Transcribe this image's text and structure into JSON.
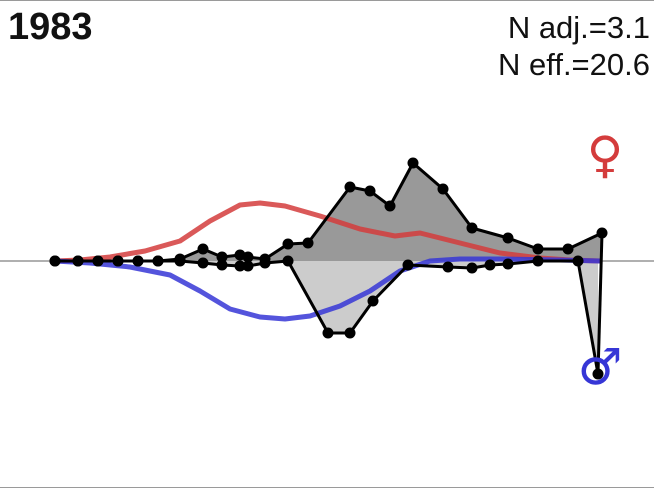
{
  "header": {
    "year": "1983",
    "n_adj_label": "N adj.=3.1",
    "n_eff_label": "N eff.=20.6"
  },
  "symbols": {
    "female": "♀",
    "male": "♂"
  },
  "colors": {
    "female_line": "#d43c3c",
    "male_line": "#3636d6",
    "upper_fill": "#999999",
    "lower_fill": "#cccccc",
    "points": "#000000",
    "baseline": "#b0b0b0"
  },
  "chart_data": {
    "type": "line",
    "title": "",
    "xlabel": "",
    "ylabel": "",
    "ylim": [
      -115,
      100
    ],
    "grid": false,
    "baseline": 0,
    "female_curve": {
      "x": [
        55,
        80,
        110,
        145,
        180,
        210,
        240,
        260,
        285,
        320,
        360,
        395,
        420,
        460,
        500,
        540,
        570,
        600
      ],
      "y": [
        0,
        1,
        4,
        10,
        20,
        40,
        56,
        58,
        55,
        45,
        32,
        25,
        28,
        18,
        8,
        3,
        1,
        0
      ]
    },
    "male_curve": {
      "x": [
        55,
        90,
        130,
        170,
        200,
        230,
        260,
        285,
        310,
        340,
        370,
        400,
        430,
        460,
        500,
        560,
        600
      ],
      "y": [
        0,
        -2,
        -6,
        -14,
        -30,
        -48,
        -56,
        -58,
        -55,
        -45,
        -30,
        -10,
        0,
        2,
        2,
        1,
        0
      ]
    },
    "upper_points": {
      "x": [
        55,
        78,
        98,
        118,
        138,
        158,
        180,
        203,
        222,
        240,
        248,
        265,
        288,
        308,
        350,
        370,
        390,
        413,
        443,
        472,
        508,
        538,
        568,
        602
      ],
      "y": [
        0,
        0,
        0,
        0,
        0,
        0,
        2,
        12,
        4,
        6,
        4,
        2,
        17,
        18,
        74,
        70,
        55,
        98,
        72,
        33,
        23,
        12,
        12,
        28
      ]
    },
    "lower_points": {
      "x": [
        55,
        78,
        98,
        118,
        138,
        158,
        180,
        203,
        222,
        240,
        248,
        265,
        288,
        328,
        350,
        373,
        408,
        448,
        472,
        490,
        508,
        538,
        578,
        598
      ],
      "y": [
        0,
        0,
        0,
        0,
        0,
        0,
        0,
        -2,
        -4,
        -5,
        -5,
        -2,
        0,
        -72,
        -72,
        -40,
        -4,
        -6,
        -7,
        -4,
        -3,
        0,
        0,
        -113
      ]
    }
  }
}
